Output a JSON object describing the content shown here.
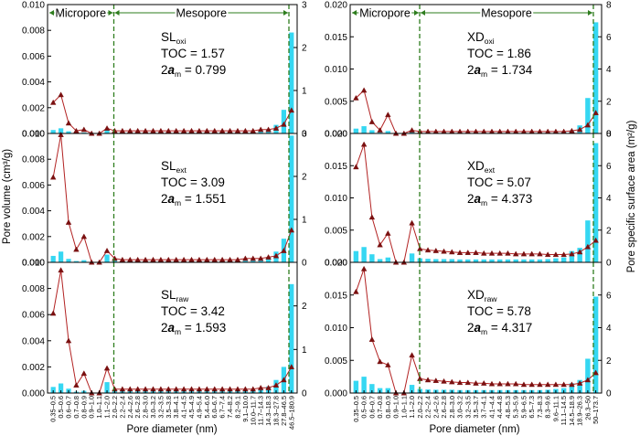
{
  "figure": {
    "left_ylabel": "Pore volume (cm³/g)",
    "right_ylabel": "Pore specific surface area (m²/g)",
    "xlabel": "Pore diameter (nm)",
    "region_micro": "Micropore",
    "region_meso": "Mesopore",
    "colors": {
      "line": "#b22222",
      "marker": "#7a1010",
      "bar": "#35d7f2",
      "guide": "#2e7d1e"
    }
  },
  "chart_data": [
    {
      "type": "bar",
      "panel": "SL-oxi",
      "sample_name": "SL",
      "sample_sub": "oxi",
      "toc_text": "TOC = 1.57",
      "am_text": "= 0.799",
      "categories": [
        "0.35–0.5",
        "0.5–0.6",
        "0.6–0.7",
        "0.7–0.8",
        "0.8–0.9",
        "0.9–1.0",
        "1.0–1.1",
        "1.1–2.0",
        "2.0–2.2",
        "2.2–2.4",
        "2.4–2.6",
        "2.6–2.8",
        "2.8–3.0",
        "3.0–3.2",
        "3.2–3.5",
        "3.5–3.8",
        "3.8–4.1",
        "4.1–4.5",
        "4.5–4.9",
        "4.9–5.4",
        "5.4–6.0",
        "6.0–6.7",
        "6.7–7.4",
        "7.4–8.2",
        "8.2–9.1",
        "9.1–10.0",
        "10.0–11.7",
        "11.7–14.3",
        "14.3–18.3",
        "18.3–27.8",
        "27.8–46.5",
        "46.5–180.9"
      ],
      "yticks_left": [
        "0.000",
        "0.002",
        "0.004",
        "0.006",
        "0.008",
        "0.010"
      ],
      "yticks_right": [
        "0",
        "1",
        "2",
        "3"
      ],
      "ylim_left": [
        0,
        0.01
      ],
      "ylim_right": [
        0,
        3
      ],
      "series": [
        {
          "axis": "left",
          "values": [
            0.0024,
            0.003,
            0.0008,
            0.0002,
            0.0003,
            0.0,
            0.0,
            0.0004,
            0.0002,
            0.0002,
            0.0002,
            0.0002,
            0.0002,
            0.0002,
            0.0002,
            0.0002,
            0.0002,
            0.0002,
            0.0002,
            0.0002,
            0.0002,
            0.0002,
            0.0002,
            0.0002,
            0.0002,
            0.0002,
            0.0002,
            0.0003,
            0.0003,
            0.0004,
            0.0007,
            0.0018
          ]
        },
        {
          "axis": "right",
          "values": [
            0.08,
            0.12,
            0.05,
            0.02,
            0.02,
            0.0,
            0.0,
            0.1,
            0.02,
            0.02,
            0.02,
            0.02,
            0.02,
            0.02,
            0.02,
            0.02,
            0.02,
            0.02,
            0.02,
            0.02,
            0.02,
            0.02,
            0.02,
            0.02,
            0.03,
            0.03,
            0.04,
            0.05,
            0.1,
            0.2,
            0.55,
            2.35
          ]
        }
      ]
    },
    {
      "type": "bar",
      "panel": "SL-ext",
      "sample_name": "SL",
      "sample_sub": "ext",
      "toc_text": "TOC = 3.09",
      "am_text": "= 1.551",
      "categories": [
        "0.35–0.5",
        "0.5–0.6",
        "0.6–0.7",
        "0.7–0.8",
        "0.8–0.9",
        "0.9–1.0",
        "1.0–1.1",
        "1.1–2.0",
        "2.0–2.2",
        "2.2–2.4",
        "2.4–2.6",
        "2.6–2.8",
        "2.8–3.0",
        "3.0–3.2",
        "3.2–3.5",
        "3.5–3.8",
        "3.8–4.1",
        "4.1–4.5",
        "4.5–4.9",
        "4.9–5.4",
        "5.4–6.0",
        "6.0–6.7",
        "6.7–7.4",
        "7.4–8.2",
        "8.2–9.1",
        "9.1–10.0",
        "10.0–11.7",
        "11.7–14.3",
        "14.3–18.3",
        "18.3–27.8",
        "27.8–46.5",
        "46.5–180.9"
      ],
      "yticks_left": [
        "0.000",
        "0.002",
        "0.004",
        "0.006",
        "0.008",
        "0.010"
      ],
      "yticks_right": [
        "0",
        "1",
        "2",
        "3"
      ],
      "ylim_left": [
        0,
        0.01
      ],
      "ylim_right": [
        0,
        3
      ],
      "series": [
        {
          "axis": "left",
          "values": [
            0.0066,
            0.0099,
            0.0031,
            0.001,
            0.002,
            0.0,
            0.0,
            0.0009,
            0.0003,
            0.0002,
            0.0002,
            0.0002,
            0.0002,
            0.0002,
            0.0002,
            0.0002,
            0.0002,
            0.0002,
            0.0002,
            0.0002,
            0.0002,
            0.0002,
            0.0002,
            0.0002,
            0.0002,
            0.0003,
            0.0003,
            0.0003,
            0.0004,
            0.0005,
            0.0009,
            0.0025
          ]
        },
        {
          "axis": "right",
          "values": [
            0.15,
            0.25,
            0.08,
            0.03,
            0.05,
            0.0,
            0.0,
            0.18,
            0.04,
            0.03,
            0.03,
            0.03,
            0.03,
            0.03,
            0.03,
            0.03,
            0.03,
            0.03,
            0.03,
            0.03,
            0.03,
            0.03,
            0.03,
            0.03,
            0.04,
            0.04,
            0.05,
            0.07,
            0.12,
            0.25,
            0.55,
            2.95
          ]
        }
      ]
    },
    {
      "type": "bar",
      "panel": "SL-raw",
      "sample_name": "SL",
      "sample_sub": "raw",
      "toc_text": "TOC = 3.42",
      "am_text": "= 1.593",
      "categories": [
        "0.35–0.5",
        "0.5–0.6",
        "0.6–0.7",
        "0.7–0.8",
        "0.8–0.9",
        "0.9–1.0",
        "1.0–1.1",
        "1.1–2.0",
        "2.0–2.2",
        "2.2–2.4",
        "2.4–2.6",
        "2.6–2.8",
        "2.8–3.0",
        "3.0–3.2",
        "3.2–3.5",
        "3.5–3.8",
        "3.8–4.1",
        "4.1–4.5",
        "4.5–4.9",
        "4.9–5.4",
        "5.4–6.0",
        "6.0–6.7",
        "6.7–7.4",
        "7.4–8.2",
        "8.2–9.1",
        "9.1–10.0",
        "10.0–11.7",
        "11.7–14.3",
        "14.3–18.3",
        "18.3–27.8",
        "27.8–46.5",
        "46.5–180.9"
      ],
      "yticks_left": [
        "0.000",
        "0.002",
        "0.004",
        "0.006",
        "0.008",
        "0.010"
      ],
      "yticks_right": [
        "0",
        "1",
        "2"
      ],
      "ylim_left": [
        0,
        0.01
      ],
      "ylim_right": [
        0,
        3
      ],
      "series": [
        {
          "axis": "left",
          "values": [
            0.0061,
            0.0094,
            0.004,
            0.0006,
            0.0015,
            0.0,
            0.0,
            0.0019,
            0.0003,
            0.0003,
            0.0003,
            0.0003,
            0.0003,
            0.0003,
            0.0003,
            0.0003,
            0.0003,
            0.0003,
            0.0003,
            0.0003,
            0.0003,
            0.0003,
            0.0003,
            0.0003,
            0.0003,
            0.0003,
            0.0003,
            0.0004,
            0.0004,
            0.0006,
            0.001,
            0.002
          ]
        },
        {
          "axis": "right",
          "values": [
            0.14,
            0.22,
            0.1,
            0.03,
            0.05,
            0.0,
            0.0,
            0.25,
            0.05,
            0.04,
            0.04,
            0.04,
            0.04,
            0.04,
            0.04,
            0.04,
            0.04,
            0.04,
            0.04,
            0.04,
            0.04,
            0.04,
            0.04,
            0.04,
            0.05,
            0.05,
            0.06,
            0.08,
            0.15,
            0.3,
            0.6,
            2.5
          ]
        }
      ]
    },
    {
      "type": "bar",
      "panel": "XD-oxi",
      "sample_name": "XD",
      "sample_sub": "oxi",
      "toc_text": "TOC = 1.86",
      "am_text": "= 1.734",
      "categories": [
        "0.35–0.5",
        "0.5–0.6",
        "0.6–0.7",
        "0.7–0.8",
        "0.8–0.9",
        "0.9–1.0",
        "1.0–1.1",
        "1.1–2.0",
        "2.0–2.2",
        "2.2–2.4",
        "2.4–2.6",
        "2.6–2.8",
        "2.8–3.0",
        "3.0–3.2",
        "3.2–3.5",
        "3.5–3.7",
        "3.7–4.1",
        "4.1–4.4",
        "4.4–4.8",
        "4.8–5.3",
        "5.3–5.9",
        "5.9–6.5",
        "6.5–7.3",
        "7.3–8.3",
        "8.3–9.6",
        "9.6–11.1",
        "11.1–14.5",
        "14.5–18.9",
        "18.9–26.3",
        "26.3–50",
        "50–173.7"
      ],
      "yticks_left": [
        "0.000",
        "0.005",
        "0.010",
        "0.015",
        "0.020"
      ],
      "yticks_right": [
        "0",
        "2",
        "4",
        "6",
        "8"
      ],
      "ylim_left": [
        0,
        0.02
      ],
      "ylim_right": [
        0,
        8
      ],
      "series": [
        {
          "axis": "left",
          "values": [
            0.0055,
            0.0067,
            0.0018,
            0.0005,
            0.0029,
            0.0,
            0.0,
            0.0005,
            0.0003,
            0.0003,
            0.0003,
            0.0003,
            0.0003,
            0.0003,
            0.0003,
            0.0003,
            0.0003,
            0.0003,
            0.0003,
            0.0003,
            0.0003,
            0.0003,
            0.0003,
            0.0003,
            0.0003,
            0.0003,
            0.0003,
            0.0004,
            0.0006,
            0.0013,
            0.0032
          ]
        },
        {
          "axis": "right",
          "values": [
            0.3,
            0.45,
            0.2,
            0.05,
            0.15,
            0.0,
            0.0,
            0.2,
            0.05,
            0.05,
            0.05,
            0.05,
            0.05,
            0.05,
            0.05,
            0.05,
            0.05,
            0.05,
            0.05,
            0.05,
            0.05,
            0.05,
            0.05,
            0.05,
            0.06,
            0.08,
            0.1,
            0.2,
            0.5,
            2.2,
            6.9
          ]
        }
      ]
    },
    {
      "type": "bar",
      "panel": "XD-ext",
      "sample_name": "XD",
      "sample_sub": "ext",
      "toc_text": "TOC = 5.07",
      "am_text": "= 4.373",
      "categories": [
        "0.35–0.5",
        "0.5–0.6",
        "0.6–0.7",
        "0.7–0.8",
        "0.8–0.9",
        "0.9–1.0",
        "1.0–1.1",
        "1.1–2.0",
        "2.0–2.2",
        "2.2–2.4",
        "2.4–2.6",
        "2.6–2.8",
        "2.8–3.0",
        "3.0–3.2",
        "3.2–3.5",
        "3.5–3.7",
        "3.7–4.1",
        "4.1–4.4",
        "4.4–4.8",
        "4.8–5.3",
        "5.3–5.9",
        "5.9–6.5",
        "6.5–7.3",
        "7.3–8.3",
        "8.3–9.6",
        "9.6–11.1",
        "11.1–14.5",
        "14.5–18.9",
        "18.9–26.3",
        "26.3–50",
        "50–173.7"
      ],
      "yticks_left": [
        "0.000",
        "0.005",
        "0.010",
        "0.015",
        "0.020"
      ],
      "yticks_right": [
        "0",
        "2",
        "4",
        "6",
        "8"
      ],
      "ylim_left": [
        0,
        0.02
      ],
      "ylim_right": [
        0,
        8
      ],
      "series": [
        {
          "axis": "left",
          "values": [
            0.0148,
            0.0183,
            0.007,
            0.0027,
            0.0045,
            0.0,
            0.0,
            0.0061,
            0.0021,
            0.0019,
            0.0018,
            0.0017,
            0.0016,
            0.0015,
            0.0015,
            0.0015,
            0.0014,
            0.0014,
            0.0014,
            0.0014,
            0.0013,
            0.0013,
            0.0013,
            0.0013,
            0.0012,
            0.0012,
            0.0012,
            0.0013,
            0.0016,
            0.0024,
            0.0034
          ]
        },
        {
          "axis": "right",
          "values": [
            0.7,
            0.95,
            0.5,
            0.2,
            0.3,
            0.0,
            0.0,
            0.55,
            0.25,
            0.22,
            0.2,
            0.2,
            0.2,
            0.18,
            0.18,
            0.18,
            0.18,
            0.18,
            0.18,
            0.18,
            0.18,
            0.18,
            0.18,
            0.18,
            0.2,
            0.25,
            0.3,
            0.7,
            0.9,
            2.6,
            7.4
          ]
        }
      ]
    },
    {
      "type": "bar",
      "panel": "XD-raw",
      "sample_name": "XD",
      "sample_sub": "raw",
      "toc_text": "TOC = 5.78",
      "am_text": "= 4.317",
      "categories": [
        "0.35–0.5",
        "0.5–0.6",
        "0.6–0.7",
        "0.7–0.8",
        "0.8–0.9",
        "0.9–1.0",
        "1.0–1.1",
        "1.1–2.0",
        "2.0–2.2",
        "2.2–2.4",
        "2.4–2.6",
        "2.6–2.8",
        "2.8–3.0",
        "3.0–3.2",
        "3.2–3.5",
        "3.5–3.7",
        "3.7–4.1",
        "4.1–4.4",
        "4.4–4.8",
        "4.8–5.3",
        "5.3–5.9",
        "5.9–6.5",
        "6.5–7.3",
        "7.3–8.3",
        "8.3–9.6",
        "9.6–11.1",
        "11.1–14.5",
        "14.5–18.9",
        "18.9–26.3",
        "26.3–50",
        "50–173.7"
      ],
      "yticks_left": [
        "0.000",
        "0.005",
        "0.010",
        "0.015",
        "0.020"
      ],
      "yticks_right": [
        "0",
        "2",
        "4",
        "6"
      ],
      "ylim_left": [
        0,
        0.02
      ],
      "ylim_right": [
        0,
        8
      ],
      "series": [
        {
          "axis": "left",
          "values": [
            0.0155,
            0.019,
            0.0082,
            0.0048,
            0.0043,
            0.0,
            0.0,
            0.0058,
            0.0022,
            0.002,
            0.0019,
            0.0018,
            0.0017,
            0.0016,
            0.0016,
            0.0015,
            0.0015,
            0.0014,
            0.0014,
            0.0014,
            0.0014,
            0.0013,
            0.0013,
            0.0013,
            0.0013,
            0.0013,
            0.0013,
            0.0013,
            0.0015,
            0.002,
            0.0031
          ]
        },
        {
          "axis": "right",
          "values": [
            0.75,
            1.0,
            0.55,
            0.3,
            0.3,
            0.0,
            0.0,
            0.5,
            0.25,
            0.22,
            0.2,
            0.2,
            0.2,
            0.18,
            0.18,
            0.18,
            0.18,
            0.18,
            0.18,
            0.18,
            0.18,
            0.18,
            0.18,
            0.18,
            0.2,
            0.25,
            0.3,
            0.6,
            0.8,
            2.1,
            5.9
          ]
        }
      ]
    }
  ]
}
